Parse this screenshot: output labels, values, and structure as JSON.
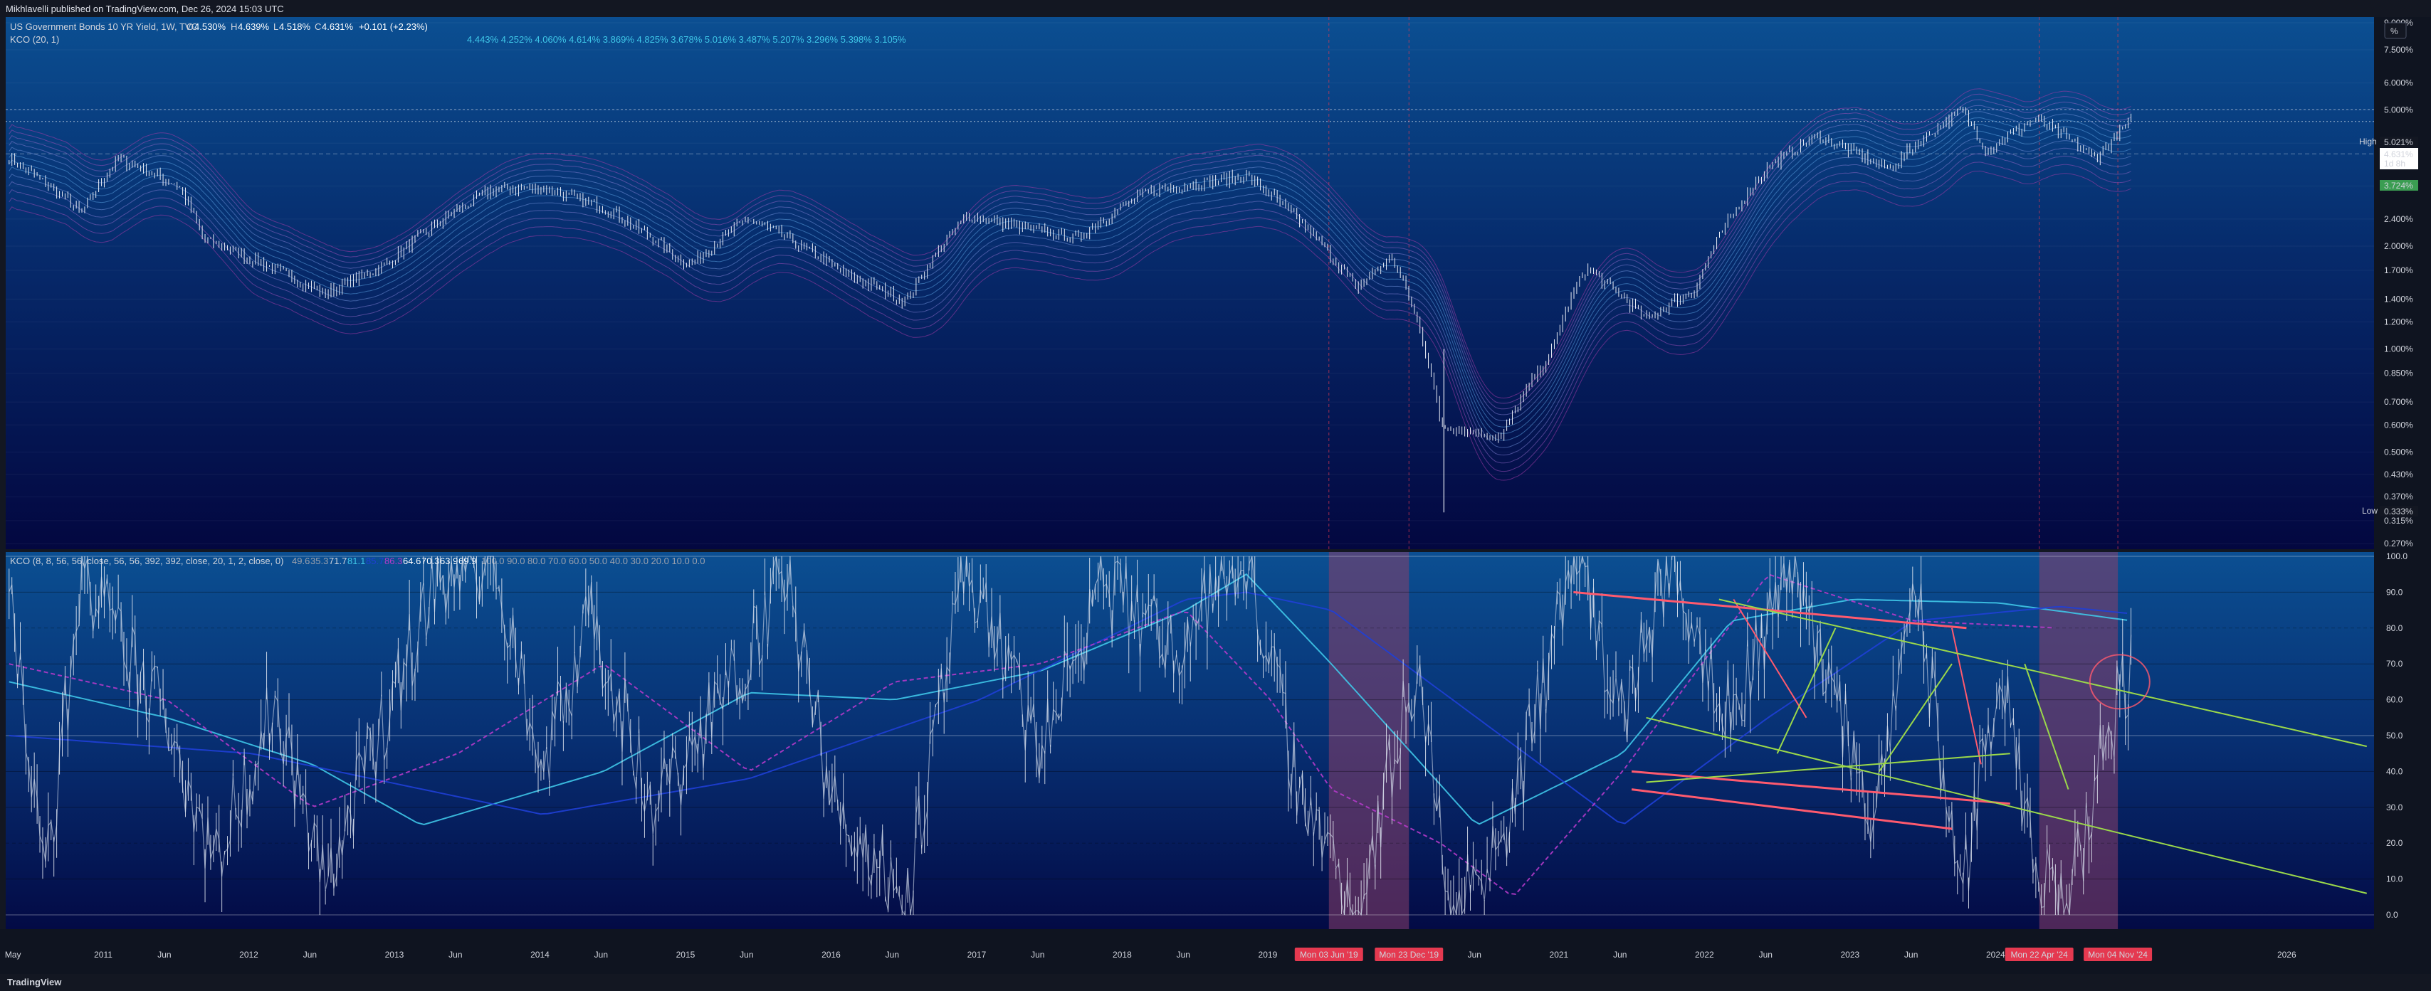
{
  "header": {
    "published": "Mikhlavelli published on TradingView.com, Dec 26, 2024 15:03 UTC"
  },
  "legend": {
    "symbol": "US Government Bonds 10 YR Yield, 1W, TVC",
    "o_label": "O",
    "o": "4.530%",
    "h_label": "H",
    "h": "4.639%",
    "l_label": "L",
    "l": "4.518%",
    "c_label": "C",
    "c": "4.631%",
    "change": "+0.101 (+2.23%)",
    "kco_main": "KCO (20, 1)",
    "kco_main_values": "4.443%  4.252%  4.060%  4.614%  3.869%  4.825%  3.678%  5.016%  3.487%  5.207%  3.296%  5.398%  3.105%",
    "kco_lower": "KCO (8, 8, 56, 56, close, 56, 56, 392, 392, close, 20, 1, 2, close, 0)",
    "kco_lower_values": [
      "49.6",
      "35.3",
      "71.7",
      "81.1",
      "85.7",
      "86.3",
      "64.6",
      "70.3",
      "63.9",
      "69.9"
    ],
    "kco_lower_levels": "100.0  90.0  80.0  70.0  60.0  50.0  40.0  30.0  20.0  10.0  0.0"
  },
  "price_scale": {
    "labels": [
      "9.000%",
      "7.500%",
      "6.000%",
      "5.000%",
      "4.000%",
      "3.000%",
      "2.400%",
      "2.000%",
      "1.700%",
      "1.400%",
      "1.200%",
      "1.000%",
      "0.850%",
      "0.700%",
      "0.600%",
      "0.500%",
      "0.430%",
      "0.370%",
      "0.315%",
      "0.270%"
    ],
    "unit_button": "%",
    "high_label": "High",
    "high_value": "5.021%",
    "current_value": "4.631%",
    "countdown": "1d 8h",
    "level_value": "3.724%",
    "low_label": "Low",
    "low_value": "0.333%"
  },
  "osc_scale": {
    "labels": [
      "100.0",
      "90.0",
      "80.0",
      "70.0",
      "60.0",
      "50.0",
      "40.0",
      "30.0",
      "20.0",
      "10.0",
      "0.0"
    ]
  },
  "time_axis": {
    "labels": [
      "May",
      "2011",
      "Jun",
      "2012",
      "Jun",
      "2013",
      "Jun",
      "2014",
      "Jun",
      "2015",
      "Jun",
      "2016",
      "Jun",
      "2017",
      "Jun",
      "2018",
      "Jun",
      "2019",
      "Jun",
      "2020",
      "Jun",
      "2021",
      "Jun",
      "2022",
      "Jun",
      "2023",
      "Jun",
      "2024",
      "Jun",
      "2026"
    ],
    "markers": [
      "Mon 03 Jun '19",
      "Mon 23 Dec '19",
      "Mon 22 Apr '24",
      "Mon 04 Nov '24"
    ]
  },
  "footer": {
    "brand": "TradingView"
  },
  "colors": {
    "background": "#131722",
    "pane_top": "#0a4a8a",
    "pane_bottom": "#04083a",
    "candles": "#e8ecf5",
    "highlight_zone": "#8b3f6a",
    "marker_red": "#e53950",
    "trend_red": "#ff5a6e",
    "trend_green": "#9bd84a",
    "ma_cyan": "#3fc7e8",
    "ma_blue": "#1f3fd6",
    "ma_magenta": "#b43ac9"
  },
  "chart_data": [
    {
      "type": "line",
      "title": "US Government Bonds 10 YR Yield, 1W, TVC",
      "scale": "log",
      "ylim": [
        0.27,
        9.0
      ],
      "y_unit": "%",
      "x": [
        "2010-05",
        "2010-11",
        "2011-02",
        "2011-07",
        "2011-09",
        "2012-07",
        "2012-12",
        "2013-09",
        "2014-01",
        "2014-06",
        "2015-01",
        "2015-06",
        "2016-02",
        "2016-07",
        "2016-12",
        "2017-09",
        "2018-03",
        "2018-11",
        "2019-08",
        "2019-11",
        "2020-03",
        "2020-08",
        "2020-12",
        "2021-03",
        "2021-08",
        "2021-12",
        "2022-06",
        "2022-10",
        "2023-04",
        "2023-10",
        "2023-12",
        "2024-04",
        "2024-09",
        "2024-12"
      ],
      "y": [
        3.6,
        2.5,
        3.6,
        3.0,
        2.1,
        1.45,
        1.75,
        2.95,
        2.95,
        2.6,
        1.75,
        2.4,
        1.65,
        1.38,
        2.45,
        2.1,
        2.9,
        3.2,
        1.5,
        1.85,
        0.6,
        0.55,
        0.95,
        1.72,
        1.22,
        1.5,
        3.4,
        4.2,
        3.35,
        5.0,
        3.8,
        4.7,
        3.62,
        4.631
      ],
      "high": 5.021,
      "low": 0.333,
      "last": 4.631,
      "horizontal_level": 3.724,
      "shaded_ranges": [
        [
          "Mon 03 Jun '19",
          "Mon 23 Dec '19"
        ],
        [
          "Mon 22 Apr '24",
          "Mon 04 Nov '24"
        ]
      ]
    },
    {
      "type": "line",
      "title": "KCO (8, 8, 56, 56, close, 56, 56, 392, 392, close, 20, 1, 2, close, 0)",
      "ylim": [
        0,
        100
      ],
      "horizontal_levels": [
        100,
        90,
        80,
        70,
        60,
        50,
        40,
        30,
        20,
        10,
        0
      ],
      "series": [
        {
          "x": [
            "2010-05",
            "2010-08",
            "2010-11",
            "2011-03",
            "2011-06",
            "2011-10",
            "2012-03",
            "2012-07",
            "2012-12",
            "2013-04",
            "2013-09",
            "2014-01",
            "2014-05",
            "2014-10",
            "2015-03",
            "2015-09",
            "2016-01",
            "2016-07",
            "2016-12",
            "2017-06",
            "2017-11",
            "2018-05",
            "2018-11",
            "2019-03",
            "2019-08",
            "2020-01",
            "2020-04",
            "2020-09",
            "2021-02",
            "2021-06",
            "2021-10",
            "2022-03",
            "2022-08",
            "2022-12",
            "2023-03",
            "2023-06",
            "2023-10",
            "2024-01",
            "2024-04",
            "2024-07",
            "2024-09",
            "2024-12"
          ],
          "values": [
            88,
            10,
            95,
            70,
            55,
            15,
            60,
            8,
            55,
            92,
            100,
            40,
            85,
            30,
            55,
            95,
            30,
            5,
            98,
            45,
            92,
            75,
            100,
            40,
            0,
            70,
            0,
            30,
            100,
            55,
            100,
            55,
            100,
            55,
            25,
            95,
            5,
            70,
            10,
            2,
            40,
            70
          ]
        },
        {
          "x": [
            "2010-05",
            "2011-06",
            "2012-06",
            "2013-03",
            "2014-06",
            "2015-06",
            "2016-06",
            "2017-06",
            "2018-06",
            "2018-11",
            "2019-06",
            "2020-06",
            "2021-06",
            "2022-03",
            "2023-01",
            "2024-01",
            "2024-12"
          ],
          "values": [
            65,
            55,
            42,
            25,
            40,
            62,
            60,
            68,
            85,
            95,
            70,
            25,
            45,
            82,
            88,
            87,
            82
          ]
        },
        {
          "x": [
            "2010-05",
            "2012-01",
            "2014-01",
            "2015-06",
            "2017-01",
            "2018-06",
            "2018-11",
            "2019-06",
            "2020-06",
            "2021-06",
            "2022-06",
            "2023-06",
            "2024-06",
            "2024-12"
          ],
          "values": [
            50,
            45,
            28,
            38,
            60,
            88,
            90,
            85,
            55,
            25,
            55,
            82,
            86,
            84
          ]
        },
        {
          "x": [
            "2010-05",
            "2011-06",
            "2012-06",
            "2013-06",
            "2014-06",
            "2015-06",
            "2016-06",
            "2017-06",
            "2018-06",
            "2019-01",
            "2019-06",
            "2020-03",
            "2020-09",
            "2021-06",
            "2022-06",
            "2023-06",
            "2024-06"
          ],
          "values": [
            70,
            60,
            30,
            45,
            70,
            40,
            65,
            70,
            85,
            60,
            35,
            20,
            5,
            40,
            95,
            82,
            80
          ]
        }
      ],
      "circle_annotation": {
        "x": "2024-11",
        "y": 65
      }
    }
  ]
}
